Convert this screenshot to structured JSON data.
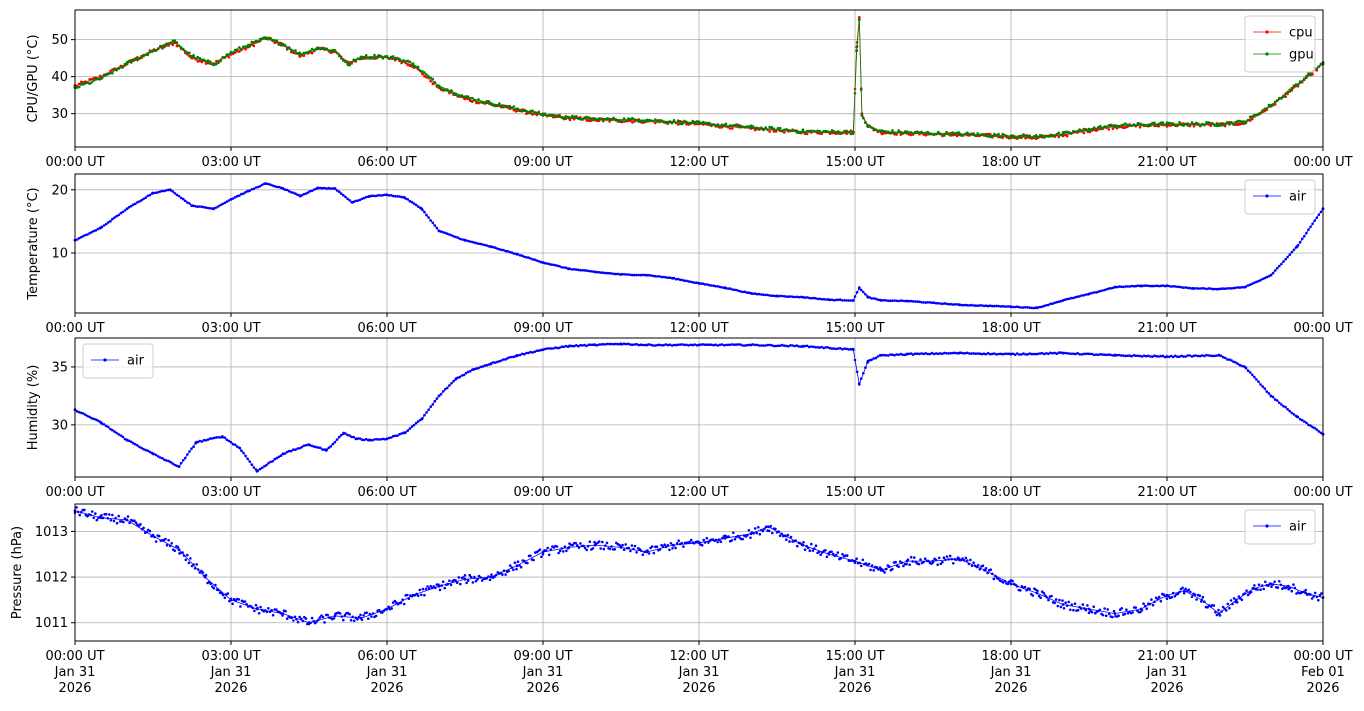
{
  "chart_data": [
    {
      "type": "line",
      "ylabel": "CPU/GPU (°C)",
      "ylim": [
        21,
        58
      ],
      "yticks": [
        30,
        40,
        50
      ],
      "xlim": [
        "2026-01-31 00:00",
        "2026-02-01 00:00"
      ],
      "xtick_labels": [
        "00:00 UT",
        "03:00 UT",
        "06:00 UT",
        "09:00 UT",
        "12:00 UT",
        "15:00 UT",
        "18:00 UT",
        "21:00 UT",
        "00:00 UT"
      ],
      "grid": true,
      "legend_position": "top-right",
      "series": [
        {
          "name": "cpu",
          "color": "#ff0000",
          "x": [
            "00:00",
            "00:30",
            "01:00",
            "01:30",
            "01:55",
            "02:15",
            "02:40",
            "03:00",
            "03:20",
            "03:40",
            "04:00",
            "04:20",
            "04:40",
            "05:00",
            "05:15",
            "05:30",
            "05:50",
            "06:10",
            "06:30",
            "07:00",
            "07:30",
            "08:00",
            "08:30",
            "09:00",
            "09:30",
            "10:00",
            "11:00",
            "12:00",
            "13:00",
            "14:00",
            "14:58",
            "15:02",
            "15:05",
            "15:08",
            "15:15",
            "15:30",
            "16:00",
            "17:00",
            "18:00",
            "18:30",
            "19:00",
            "19:30",
            "20:00",
            "21:00",
            "22:00",
            "22:30",
            "23:00",
            "23:30",
            "24:00"
          ],
          "values": [
            37.5,
            40,
            43.5,
            47,
            49.2,
            45,
            43.5,
            46,
            48,
            50.5,
            48.5,
            45.5,
            47.5,
            46.8,
            43.5,
            45,
            45.3,
            44.8,
            43,
            37,
            34,
            32.5,
            31,
            29.5,
            28.8,
            28.3,
            28,
            27.2,
            26,
            25,
            25,
            48,
            56,
            30,
            26.5,
            25,
            24.7,
            24.3,
            23.8,
            23.5,
            24.2,
            25.5,
            26.5,
            27,
            27,
            27.5,
            32,
            37.5,
            43.5
          ]
        },
        {
          "name": "gpu",
          "color": "#008000",
          "x": [
            "00:00",
            "00:30",
            "01:00",
            "01:30",
            "01:55",
            "02:15",
            "02:40",
            "03:00",
            "03:20",
            "03:40",
            "04:00",
            "04:20",
            "04:40",
            "05:00",
            "05:15",
            "05:30",
            "05:50",
            "06:10",
            "06:30",
            "07:00",
            "07:30",
            "08:00",
            "08:30",
            "09:00",
            "09:30",
            "10:00",
            "11:00",
            "12:00",
            "13:00",
            "14:00",
            "14:58",
            "15:02",
            "15:05",
            "15:08",
            "15:15",
            "15:30",
            "16:00",
            "17:00",
            "18:00",
            "18:30",
            "19:00",
            "19:30",
            "20:00",
            "21:00",
            "22:00",
            "22:30",
            "23:00",
            "23:30",
            "24:00"
          ],
          "values": [
            37,
            39.5,
            43.5,
            47,
            49.5,
            45.5,
            43.3,
            46.5,
            48.5,
            50.3,
            48.8,
            46,
            47.8,
            47,
            43.2,
            45.3,
            45.5,
            45,
            43.5,
            37.5,
            34.5,
            32.8,
            31.3,
            29.8,
            29,
            28.5,
            28.3,
            27.4,
            26.3,
            25.2,
            25,
            47,
            55.5,
            29.5,
            26.5,
            25.2,
            24.9,
            24.5,
            24,
            23.8,
            24.5,
            25.8,
            26.8,
            27.2,
            27.2,
            27.8,
            32.3,
            37.8,
            43.8
          ]
        }
      ]
    },
    {
      "type": "line",
      "ylabel": "Temperature (°C)",
      "ylim": [
        0.5,
        22.5
      ],
      "yticks": [
        10,
        20
      ],
      "xlim": [
        "2026-01-31 00:00",
        "2026-02-01 00:00"
      ],
      "xtick_labels": [
        "00:00 UT",
        "03:00 UT",
        "06:00 UT",
        "09:00 UT",
        "12:00 UT",
        "15:00 UT",
        "18:00 UT",
        "21:00 UT",
        "00:00 UT"
      ],
      "grid": true,
      "legend_position": "top-right",
      "series": [
        {
          "name": "air",
          "color": "#0000ff",
          "x": [
            "00:00",
            "00:30",
            "01:00",
            "01:30",
            "01:50",
            "02:15",
            "02:40",
            "03:00",
            "03:20",
            "03:40",
            "04:00",
            "04:20",
            "04:40",
            "05:00",
            "05:20",
            "05:40",
            "06:00",
            "06:20",
            "06:40",
            "07:00",
            "07:30",
            "08:00",
            "08:30",
            "09:00",
            "09:30",
            "10:00",
            "10:30",
            "11:00",
            "11:30",
            "12:00",
            "12:30",
            "13:00",
            "13:30",
            "14:00",
            "14:30",
            "14:58",
            "15:05",
            "15:15",
            "15:30",
            "16:00",
            "17:00",
            "18:00",
            "18:30",
            "19:00",
            "19:30",
            "20:00",
            "20:30",
            "21:00",
            "21:30",
            "22:00",
            "22:30",
            "23:00",
            "23:30",
            "24:00"
          ],
          "values": [
            12,
            14,
            17,
            19.5,
            20,
            17.5,
            17,
            18.5,
            19.8,
            21,
            20.2,
            19,
            20.3,
            20.2,
            18,
            19,
            19.2,
            18.8,
            17,
            13.5,
            12,
            11,
            9.8,
            8.5,
            7.5,
            7,
            6.6,
            6.5,
            6,
            5.2,
            4.5,
            3.6,
            3.2,
            3,
            2.6,
            2.5,
            4.5,
            3,
            2.5,
            2.4,
            1.8,
            1.5,
            1.3,
            2.5,
            3.5,
            4.6,
            4.8,
            4.8,
            4.4,
            4.3,
            4.6,
            6.5,
            11,
            17
          ]
        }
      ]
    },
    {
      "type": "line",
      "ylabel": "Humidity (%)",
      "ylim": [
        25.5,
        37.5
      ],
      "yticks": [
        30,
        35
      ],
      "xlim": [
        "2026-01-31 00:00",
        "2026-02-01 00:00"
      ],
      "xtick_labels": [
        "00:00 UT",
        "03:00 UT",
        "06:00 UT",
        "09:00 UT",
        "12:00 UT",
        "15:00 UT",
        "18:00 UT",
        "21:00 UT",
        "00:00 UT"
      ],
      "grid": true,
      "legend_position": "top-left",
      "series": [
        {
          "name": "air",
          "color": "#0000ff",
          "x": [
            "00:00",
            "00:30",
            "01:00",
            "01:30",
            "02:00",
            "02:20",
            "02:50",
            "03:10",
            "03:30",
            "04:00",
            "04:30",
            "04:50",
            "05:10",
            "05:25",
            "05:40",
            "06:00",
            "06:20",
            "06:40",
            "07:00",
            "07:20",
            "07:40",
            "08:00",
            "08:30",
            "09:00",
            "09:30",
            "10:00",
            "10:30",
            "11:00",
            "12:00",
            "13:00",
            "14:00",
            "14:58",
            "15:05",
            "15:15",
            "15:30",
            "16:00",
            "17:00",
            "18:00",
            "19:00",
            "20:00",
            "21:00",
            "22:00",
            "22:30",
            "23:00",
            "23:30",
            "24:00"
          ],
          "values": [
            31.3,
            30.2,
            28.7,
            27.5,
            26.4,
            28.5,
            29,
            28,
            26,
            27.5,
            28.3,
            27.8,
            29.3,
            28.8,
            28.7,
            28.8,
            29.3,
            30.5,
            32.5,
            34,
            34.8,
            35.3,
            36,
            36.5,
            36.8,
            36.9,
            37,
            36.9,
            36.9,
            36.9,
            36.8,
            36.5,
            33.5,
            35.5,
            36,
            36.1,
            36.2,
            36.1,
            36.2,
            36,
            35.9,
            36,
            35,
            32.5,
            30.7,
            29.2
          ]
        }
      ]
    },
    {
      "type": "line",
      "ylabel": "Pressure (hPa)",
      "ylim": [
        1010.6,
        1013.6
      ],
      "yticks": [
        1011,
        1012,
        1013
      ],
      "xlim": [
        "2026-01-31 00:00",
        "2026-02-01 00:00"
      ],
      "xtick_labels": [
        "00:00 UT\nJan 31\n2026",
        "03:00 UT\nJan 31\n2026",
        "06:00 UT\nJan 31\n2026",
        "09:00 UT\nJan 31\n2026",
        "12:00 UT\nJan 31\n2026",
        "15:00 UT\nJan 31\n2026",
        "18:00 UT\nJan 31\n2026",
        "21:00 UT\nJan 31\n2026",
        "00:00 UT\nFeb 01\n2026"
      ],
      "grid": true,
      "legend_position": "top-right",
      "series": [
        {
          "name": "air",
          "color": "#0000ff",
          "x": [
            "00:00",
            "00:30",
            "01:00",
            "01:30",
            "02:00",
            "02:30",
            "03:00",
            "03:30",
            "04:00",
            "04:30",
            "05:00",
            "05:30",
            "06:00",
            "06:30",
            "07:00",
            "07:30",
            "08:00",
            "08:30",
            "09:00",
            "09:30",
            "10:00",
            "10:30",
            "11:00",
            "11:30",
            "12:00",
            "12:30",
            "13:00",
            "13:20",
            "13:40",
            "14:00",
            "14:30",
            "15:00",
            "15:30",
            "16:00",
            "16:30",
            "17:00",
            "17:30",
            "18:00",
            "18:30",
            "19:00",
            "19:30",
            "20:00",
            "20:30",
            "21:00",
            "21:20",
            "21:40",
            "22:00",
            "22:20",
            "22:40",
            "23:00",
            "23:20",
            "23:40",
            "24:00"
          ],
          "values": [
            1013.45,
            1013.3,
            1013.25,
            1012.9,
            1012.6,
            1012.0,
            1011.5,
            1011.3,
            1011.2,
            1011.0,
            1011.15,
            1011.1,
            1011.3,
            1011.6,
            1011.8,
            1011.95,
            1012.0,
            1012.25,
            1012.55,
            1012.65,
            1012.7,
            1012.65,
            1012.55,
            1012.7,
            1012.75,
            1012.85,
            1012.95,
            1013.1,
            1012.9,
            1012.7,
            1012.5,
            1012.35,
            1012.15,
            1012.35,
            1012.35,
            1012.4,
            1012.15,
            1011.85,
            1011.65,
            1011.4,
            1011.3,
            1011.2,
            1011.3,
            1011.6,
            1011.7,
            1011.5,
            1011.2,
            1011.5,
            1011.75,
            1011.85,
            1011.8,
            1011.65,
            1011.55
          ]
        }
      ]
    }
  ]
}
